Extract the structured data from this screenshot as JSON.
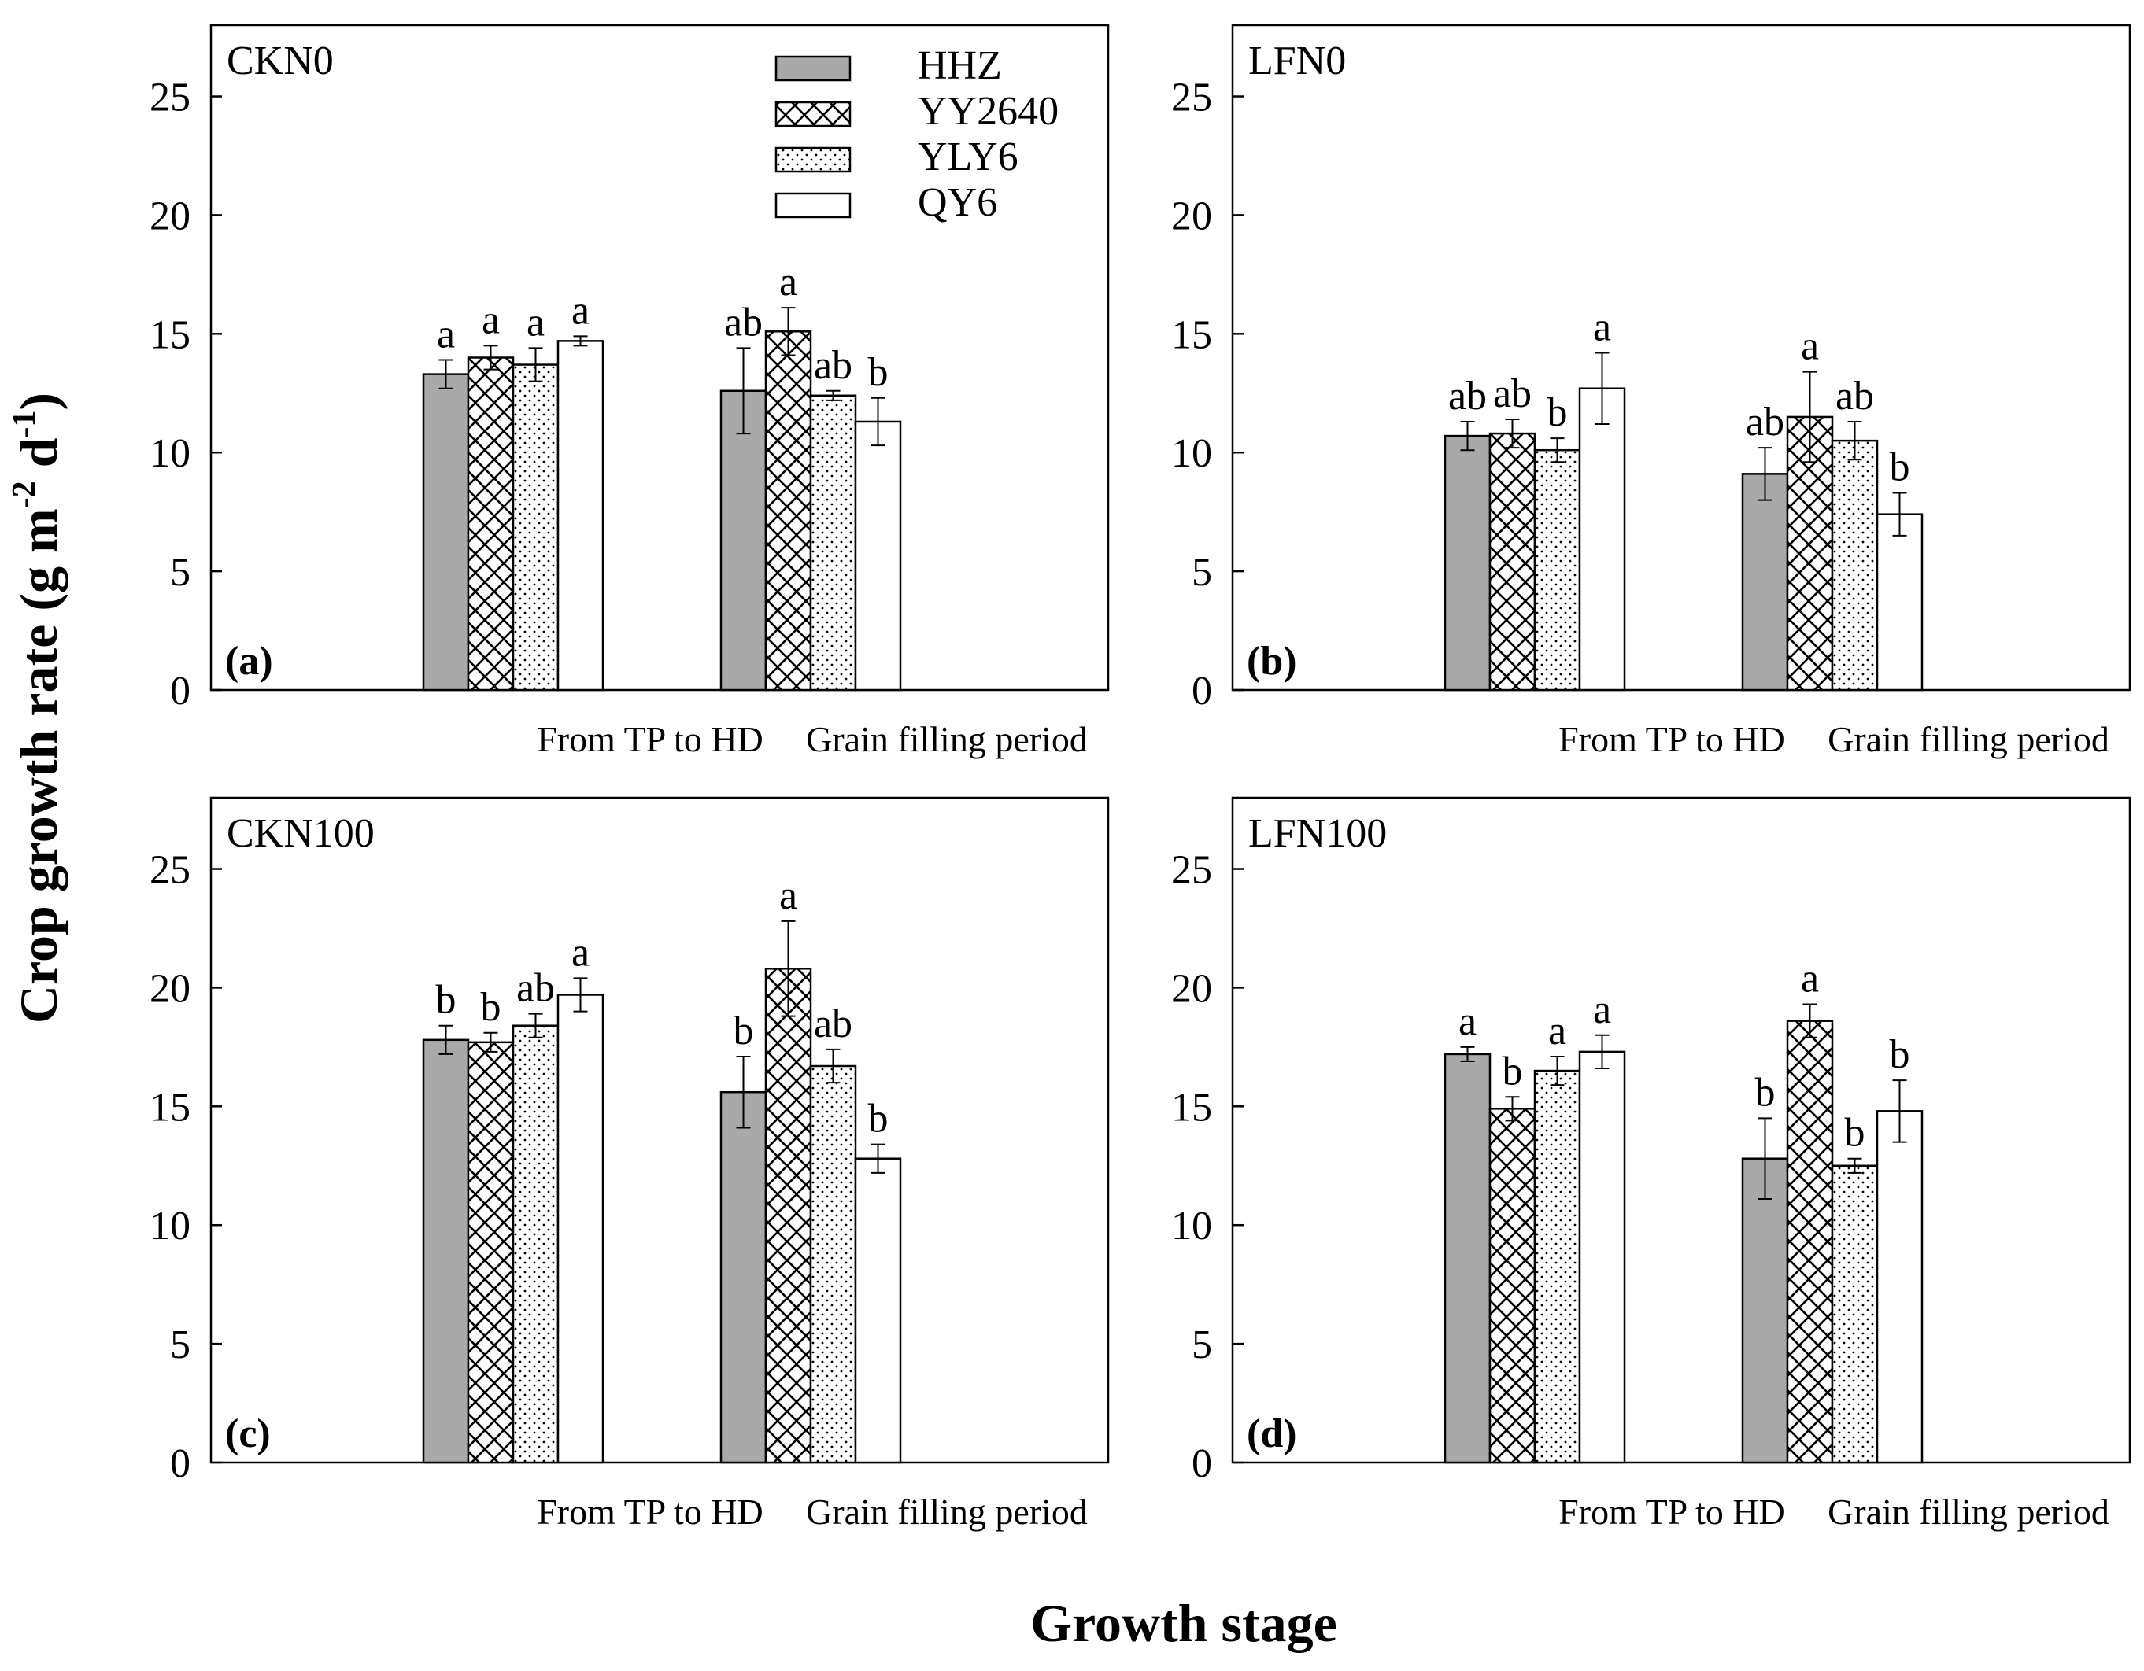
{
  "figure": {
    "ylabel_main": "Crop growth rate (g m",
    "ylabel_sup1": "-2",
    "ylabel_mid": " d",
    "ylabel_sup2": "-1",
    "ylabel_end": ")",
    "xlabel": "Growth stage"
  },
  "legend": {
    "entries": [
      "HHZ",
      "YY2640",
      "YLY6",
      "QY6"
    ]
  },
  "colors": {
    "HHZ": "#a9a9a9",
    "YY2640": "#ffffff",
    "YLY6": "#ffffff",
    "QY6": "#ffffff",
    "axis": "#000000"
  },
  "chart_data": [
    {
      "type": "bar",
      "panel_label": "(a)",
      "treatment": "CKN0",
      "categories": [
        "From TP to HD",
        "Grain filling period"
      ],
      "yticks": [
        "0",
        "5",
        "10",
        "15",
        "20",
        "25"
      ],
      "ylim": [
        0,
        28
      ],
      "series": [
        {
          "name": "HHZ",
          "values": [
            13.3,
            12.6
          ],
          "errors": [
            0.6,
            1.8
          ],
          "letters": [
            "a",
            "ab"
          ]
        },
        {
          "name": "YY2640",
          "values": [
            14.0,
            15.1
          ],
          "errors": [
            0.5,
            1.0
          ],
          "letters": [
            "a",
            "a"
          ]
        },
        {
          "name": "YLY6",
          "values": [
            13.7,
            12.4
          ],
          "errors": [
            0.7,
            0.2
          ],
          "letters": [
            "a",
            "ab"
          ]
        },
        {
          "name": "QY6",
          "values": [
            14.7,
            11.3
          ],
          "errors": [
            0.2,
            1.0
          ],
          "letters": [
            "a",
            "b"
          ]
        }
      ]
    },
    {
      "type": "bar",
      "panel_label": "(b)",
      "treatment": "LFN0",
      "categories": [
        "From TP to HD",
        "Grain filling period"
      ],
      "yticks": [
        "0",
        "5",
        "10",
        "15",
        "20",
        "25"
      ],
      "ylim": [
        0,
        28
      ],
      "series": [
        {
          "name": "HHZ",
          "values": [
            10.7,
            9.1
          ],
          "errors": [
            0.6,
            1.1
          ],
          "letters": [
            "ab",
            "ab"
          ]
        },
        {
          "name": "YY2640",
          "values": [
            10.8,
            11.5
          ],
          "errors": [
            0.6,
            1.9
          ],
          "letters": [
            "ab",
            "a"
          ]
        },
        {
          "name": "YLY6",
          "values": [
            10.1,
            10.5
          ],
          "errors": [
            0.5,
            0.8
          ],
          "letters": [
            "b",
            "ab"
          ]
        },
        {
          "name": "QY6",
          "values": [
            12.7,
            7.4
          ],
          "errors": [
            1.5,
            0.9
          ],
          "letters": [
            "a",
            "b"
          ]
        }
      ]
    },
    {
      "type": "bar",
      "panel_label": "(c)",
      "treatment": "CKN100",
      "categories": [
        "From TP to HD",
        "Grain filling period"
      ],
      "yticks": [
        "0",
        "5",
        "10",
        "15",
        "20",
        "25"
      ],
      "ylim": [
        0,
        28
      ],
      "series": [
        {
          "name": "HHZ",
          "values": [
            17.8,
            15.6
          ],
          "errors": [
            0.6,
            1.5
          ],
          "letters": [
            "b",
            "b"
          ]
        },
        {
          "name": "YY2640",
          "values": [
            17.7,
            20.8
          ],
          "errors": [
            0.4,
            2.0
          ],
          "letters": [
            "b",
            "a"
          ]
        },
        {
          "name": "YLY6",
          "values": [
            18.4,
            16.7
          ],
          "errors": [
            0.5,
            0.7
          ],
          "letters": [
            "ab",
            "ab"
          ]
        },
        {
          "name": "QY6",
          "values": [
            19.7,
            12.8
          ],
          "errors": [
            0.7,
            0.6
          ],
          "letters": [
            "a",
            "b"
          ]
        }
      ]
    },
    {
      "type": "bar",
      "panel_label": "(d)",
      "treatment": "LFN100",
      "categories": [
        "From TP to HD",
        "Grain filling period"
      ],
      "yticks": [
        "0",
        "5",
        "10",
        "15",
        "20",
        "25"
      ],
      "ylim": [
        0,
        28
      ],
      "series": [
        {
          "name": "HHZ",
          "values": [
            17.2,
            12.8
          ],
          "errors": [
            0.3,
            1.7
          ],
          "letters": [
            "a",
            "b"
          ]
        },
        {
          "name": "YY2640",
          "values": [
            14.9,
            18.6
          ],
          "errors": [
            0.5,
            0.7
          ],
          "letters": [
            "b",
            "a"
          ]
        },
        {
          "name": "YLY6",
          "values": [
            16.5,
            12.5
          ],
          "errors": [
            0.6,
            0.3
          ],
          "letters": [
            "a",
            "b"
          ]
        },
        {
          "name": "QY6",
          "values": [
            17.3,
            14.8
          ],
          "errors": [
            0.7,
            1.3
          ],
          "letters": [
            "a",
            "b"
          ]
        }
      ]
    }
  ]
}
